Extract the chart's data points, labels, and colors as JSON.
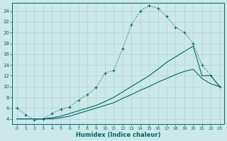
{
  "bg_color": "#cce8e8",
  "grid_color": "#b0d4d4",
  "line_color": "#006666",
  "xlabel": "Humidex (Indice chaleur)",
  "xlim": [
    -0.5,
    23.5
  ],
  "ylim": [
    3.0,
    25.5
  ],
  "yticks": [
    4,
    6,
    8,
    10,
    12,
    14,
    16,
    18,
    20,
    22,
    24
  ],
  "xticks": [
    0,
    1,
    2,
    3,
    4,
    5,
    6,
    7,
    8,
    9,
    10,
    11,
    12,
    13,
    14,
    15,
    16,
    17,
    18,
    19,
    20,
    21,
    22,
    23
  ],
  "line1_x": [
    0,
    1,
    2,
    3,
    4,
    5,
    6,
    7,
    8,
    9,
    10,
    11,
    12,
    13,
    14,
    15,
    16,
    17,
    18,
    19,
    20,
    21,
    22,
    23
  ],
  "line1_y": [
    6.0,
    4.8,
    3.8,
    4.0,
    5.0,
    5.8,
    6.2,
    7.5,
    8.5,
    9.8,
    12.5,
    13.0,
    17.0,
    21.5,
    24.0,
    25.0,
    24.5,
    23.0,
    21.0,
    20.0,
    18.0,
    14.0,
    12.0,
    10.0
  ],
  "line2_x": [
    0,
    1,
    2,
    3,
    4,
    5,
    6,
    7,
    8,
    9,
    10,
    11,
    12,
    13,
    14,
    15,
    16,
    17,
    18,
    19,
    20,
    21,
    22,
    23
  ],
  "line2_y": [
    4.0,
    4.0,
    4.0,
    4.0,
    4.2,
    4.5,
    5.0,
    5.5,
    6.0,
    6.5,
    7.2,
    8.0,
    9.0,
    10.0,
    11.0,
    12.0,
    13.2,
    14.5,
    15.5,
    16.5,
    17.5,
    12.0,
    12.0,
    10.0
  ],
  "line3_x": [
    0,
    1,
    2,
    3,
    4,
    5,
    6,
    7,
    8,
    9,
    10,
    11,
    12,
    13,
    14,
    15,
    16,
    17,
    18,
    19,
    20,
    21,
    22,
    23
  ],
  "line3_y": [
    4.0,
    4.0,
    4.0,
    4.0,
    4.0,
    4.2,
    4.5,
    5.0,
    5.5,
    6.0,
    6.5,
    7.0,
    7.8,
    8.5,
    9.3,
    10.0,
    10.8,
    11.5,
    12.2,
    12.8,
    13.2,
    11.5,
    10.5,
    10.0
  ]
}
